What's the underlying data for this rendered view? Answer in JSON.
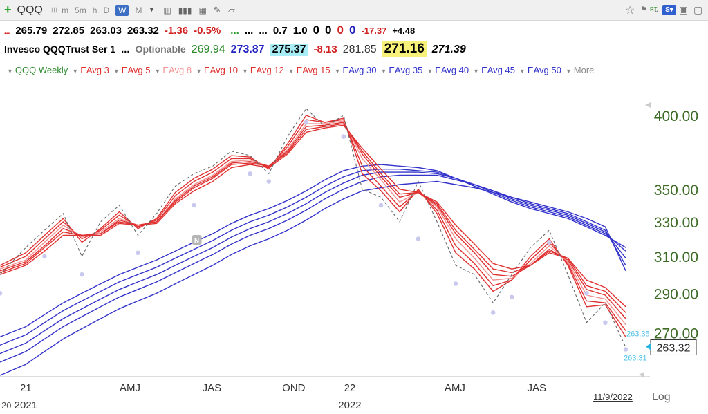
{
  "toolbar": {
    "plus_icon": "plus-icon",
    "symbol": "QQQ",
    "intervals": [
      "m",
      "5m",
      "h",
      "D",
      "W",
      "M"
    ],
    "active_interval": "W"
  },
  "quote_row1": {
    "dots1": "...",
    "open": "265.79",
    "high": "272.85",
    "low": "263.03",
    "close": "263.32",
    "change": "-1.36",
    "change_pct": "-0.5%",
    "dots2": "...",
    "dots3": "...",
    "dots4": "...",
    "v1": "0.7",
    "v2": "1.0",
    "v3": "0",
    "v4": "0",
    "v5": "0",
    "v6": "0",
    "v7": "-17.37",
    "v8": "+4.48"
  },
  "quote_row2": {
    "name": "Invesco QQQTrust Ser 1",
    "dots": "...",
    "optionable": "Optionable",
    "f1": "269.94",
    "f2": "273.87",
    "f3": "275.37",
    "f4": "-8.13",
    "f5": "281.85",
    "f6": "271.16",
    "f7": "271.39"
  },
  "legend": {
    "items": [
      {
        "label": "QQQ Weekly",
        "color": "#2e8b2e"
      },
      {
        "label": "EAvg 3",
        "color": "#e03030"
      },
      {
        "label": "EAvg 5",
        "color": "#e03030"
      },
      {
        "label": "EAvg 8",
        "color": "#f09090"
      },
      {
        "label": "EAvg 10",
        "color": "#e03030"
      },
      {
        "label": "EAvg 12",
        "color": "#e03030"
      },
      {
        "label": "EAvg 15",
        "color": "#e03030"
      },
      {
        "label": "EAvg 30",
        "color": "#3333cc"
      },
      {
        "label": "EAvg 35",
        "color": "#3333cc"
      },
      {
        "label": "EAvg 40",
        "color": "#3333cc"
      },
      {
        "label": "EAvg 45",
        "color": "#3333cc"
      },
      {
        "label": "EAvg 50",
        "color": "#3333cc"
      }
    ],
    "more": "More"
  },
  "chart_data": {
    "type": "line",
    "y_scale": "log",
    "ylim": [
      250,
      420
    ],
    "yticks": [
      "400.00",
      "350.00",
      "330.00",
      "310.00",
      "290.00",
      "270.00"
    ],
    "x_range": [
      "2020-12-06",
      "2022-11-09"
    ],
    "xticks": [
      {
        "label": "21",
        "date": "2021-01-04"
      },
      {
        "label": "AMJ",
        "date": "2021-05-01"
      },
      {
        "label": "JAS",
        "date": "2021-08-01"
      },
      {
        "label": "OND",
        "date": "2021-11-01"
      },
      {
        "label": "22",
        "date": "2022-01-03"
      },
      {
        "label": "AMJ",
        "date": "2022-05-01"
      },
      {
        "label": "JAS",
        "date": "2022-08-01"
      }
    ],
    "year_labels": [
      {
        "label": "2021",
        "date": "2021-01-04"
      },
      {
        "label": "2022",
        "date": "2022-01-03"
      }
    ],
    "left_edge_label": "20",
    "date_label": "11/9/2022",
    "scale_label": "Log",
    "price_box": "263.32",
    "side_labels": [
      "263.35",
      "263.31"
    ],
    "event_marker": "N",
    "event_marker_date": "2021-07-15",
    "price": {
      "name": "QQQ Weekly",
      "x": [
        "2020-12-06",
        "2021-01-04",
        "2021-01-25",
        "2021-02-15",
        "2021-03-08",
        "2021-03-29",
        "2021-04-19",
        "2021-05-10",
        "2021-05-31",
        "2021-06-21",
        "2021-07-12",
        "2021-08-02",
        "2021-08-23",
        "2021-09-13",
        "2021-10-04",
        "2021-10-25",
        "2021-11-15",
        "2021-12-06",
        "2021-12-27",
        "2022-01-17",
        "2022-02-07",
        "2022-02-28",
        "2022-03-21",
        "2022-04-11",
        "2022-05-02",
        "2022-05-23",
        "2022-06-13",
        "2022-07-04",
        "2022-07-25",
        "2022-08-15",
        "2022-09-05",
        "2022-09-26",
        "2022-10-17",
        "2022-11-09"
      ],
      "values": [
        300,
        315,
        325,
        335,
        310,
        330,
        340,
        322,
        335,
        352,
        360,
        365,
        375,
        372,
        360,
        385,
        405,
        392,
        400,
        350,
        345,
        330,
        355,
        330,
        305,
        300,
        285,
        300,
        315,
        325,
        300,
        275,
        285,
        263
      ]
    },
    "series": [
      {
        "name": "EAvg 3",
        "color": "#e03030",
        "values": [
          305,
          312,
          322,
          332,
          318,
          326,
          336,
          326,
          332,
          348,
          357,
          363,
          372,
          371,
          363,
          380,
          400,
          395,
          398,
          360,
          349,
          336,
          350,
          335,
          312,
          303,
          291,
          297,
          310,
          320,
          305,
          283,
          284,
          268
        ]
      },
      {
        "name": "EAvg 5",
        "color": "#e03030",
        "values": [
          304,
          310,
          320,
          330,
          320,
          325,
          334,
          327,
          331,
          346,
          355,
          361,
          370,
          370,
          364,
          378,
          397,
          395,
          397,
          365,
          352,
          339,
          349,
          337,
          316,
          306,
          294,
          297,
          308,
          318,
          306,
          286,
          285,
          271
        ]
      },
      {
        "name": "EAvg 8",
        "color": "#f09090",
        "values": [
          303,
          308,
          318,
          328,
          321,
          324,
          332,
          328,
          330,
          344,
          353,
          359,
          368,
          369,
          365,
          376,
          394,
          394,
          396,
          370,
          356,
          342,
          348,
          339,
          320,
          309,
          297,
          298,
          306,
          316,
          307,
          289,
          287,
          274
        ]
      },
      {
        "name": "EAvg 10",
        "color": "#e03030",
        "values": [
          302,
          307,
          316,
          326,
          322,
          323,
          331,
          328,
          330,
          343,
          352,
          358,
          367,
          368,
          365,
          375,
          392,
          393,
          395,
          373,
          358,
          345,
          348,
          340,
          323,
          312,
          300,
          299,
          305,
          314,
          308,
          292,
          289,
          277
        ]
      },
      {
        "name": "EAvg 12",
        "color": "#e03030",
        "values": [
          301,
          306,
          315,
          324,
          322,
          323,
          330,
          328,
          330,
          342,
          351,
          357,
          366,
          367,
          365,
          374,
          390,
          392,
          394,
          375,
          360,
          347,
          348,
          341,
          325,
          314,
          303,
          301,
          305,
          313,
          309,
          294,
          291,
          280
        ]
      },
      {
        "name": "EAvg 15",
        "color": "#e03030",
        "values": [
          300,
          305,
          313,
          322,
          322,
          322,
          329,
          328,
          329,
          341,
          349,
          355,
          364,
          366,
          364,
          373,
          388,
          391,
          393,
          377,
          363,
          350,
          348,
          342,
          328,
          317,
          306,
          303,
          305,
          312,
          309,
          297,
          293,
          283
        ]
      },
      {
        "name": "EAvg 30",
        "color": "#3333cc",
        "values": [
          268,
          273,
          279,
          285,
          290,
          295,
          300,
          304,
          308,
          313,
          318,
          323,
          329,
          334,
          338,
          343,
          349,
          356,
          362,
          365,
          366,
          365,
          364,
          362,
          357,
          352,
          347,
          342,
          338,
          335,
          332,
          327,
          322,
          315
        ]
      },
      {
        "name": "EAvg 35",
        "color": "#3333cc",
        "values": [
          264,
          269,
          275,
          281,
          286,
          291,
          296,
          300,
          304,
          309,
          314,
          319,
          325,
          330,
          334,
          339,
          345,
          352,
          358,
          362,
          363,
          363,
          362,
          361,
          357,
          353,
          348,
          343,
          339,
          336,
          333,
          328,
          323,
          313
        ]
      },
      {
        "name": "EAvg 40",
        "color": "#3333cc",
        "values": [
          260,
          265,
          271,
          277,
          282,
          287,
          292,
          296,
          300,
          305,
          310,
          315,
          321,
          326,
          330,
          335,
          341,
          348,
          354,
          359,
          361,
          361,
          361,
          360,
          357,
          353,
          349,
          344,
          340,
          337,
          334,
          329,
          324,
          309
        ]
      },
      {
        "name": "EAvg 45",
        "color": "#3333cc",
        "values": [
          256,
          261,
          267,
          273,
          278,
          283,
          288,
          292,
          296,
          301,
          306,
          311,
          317,
          322,
          326,
          331,
          337,
          344,
          350,
          355,
          358,
          359,
          359,
          359,
          356,
          353,
          349,
          345,
          341,
          338,
          335,
          330,
          325,
          305
        ]
      },
      {
        "name": "EAvg 50",
        "color": "#3333cc",
        "values": [
          250,
          255,
          261,
          267,
          272,
          277,
          282,
          286,
          290,
          295,
          300,
          305,
          311,
          316,
          320,
          325,
          331,
          338,
          344,
          349,
          351,
          353,
          354,
          355,
          353,
          351,
          348,
          345,
          342,
          339,
          336,
          332,
          327,
          302
        ]
      }
    ],
    "dot_series": {
      "name": "QQQ Weekly lows",
      "color": "#c9c9ee",
      "x": [
        "2020-12-06",
        "2021-01-25",
        "2021-03-08",
        "2021-05-10",
        "2021-07-12",
        "2021-09-13",
        "2021-10-04",
        "2021-11-15",
        "2021-12-27",
        "2022-02-07",
        "2022-03-21",
        "2022-05-02",
        "2022-06-13",
        "2022-07-04",
        "2022-08-15",
        "2022-09-26",
        "2022-10-17",
        "2022-11-09"
      ],
      "values": [
        290,
        310,
        300,
        312,
        340,
        360,
        355,
        395,
        385,
        340,
        320,
        295,
        280,
        288,
        318,
        290,
        275,
        262
      ]
    }
  }
}
